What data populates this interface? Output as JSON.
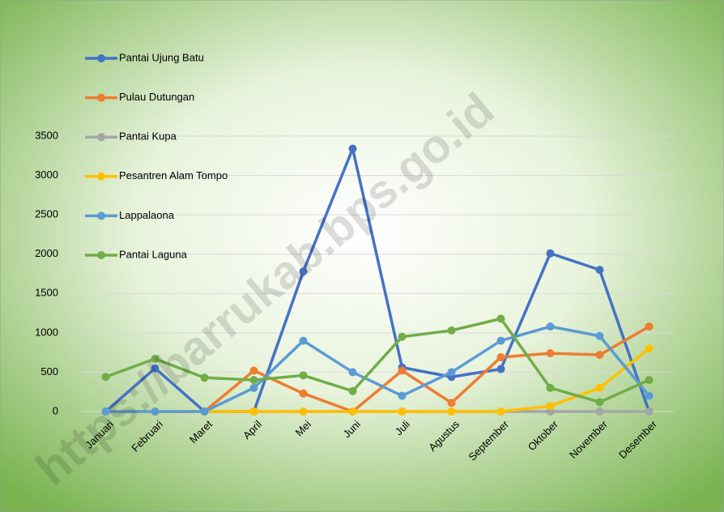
{
  "chart_data": {
    "type": "line",
    "categories": [
      "Januari",
      "Februari",
      "Maret",
      "April",
      "Mei",
      "Juni",
      "Juli",
      "Agustus",
      "September",
      "Oktober",
      "November",
      "Desember"
    ],
    "series": [
      {
        "name": "Pantai Ujung Batu",
        "color": "#4472c4",
        "values": [
          0,
          550,
          0,
          0,
          1780,
          3340,
          560,
          440,
          540,
          2010,
          1800,
          0
        ]
      },
      {
        "name": "Pulau Dutungan",
        "color": "#ed7d31",
        "values": [
          0,
          0,
          0,
          520,
          230,
          0,
          520,
          110,
          690,
          740,
          720,
          1080
        ]
      },
      {
        "name": "Pantai Kupa",
        "color": "#a5a5a5",
        "values": [
          0,
          0,
          0,
          0,
          0,
          0,
          0,
          0,
          0,
          0,
          0,
          0
        ]
      },
      {
        "name": "Pesantren Alam Tompo",
        "color": "#ffc000",
        "values": [
          0,
          0,
          0,
          0,
          0,
          0,
          0,
          0,
          0,
          70,
          300,
          800
        ]
      },
      {
        "name": "Lappalaona",
        "color": "#5b9bd5",
        "values": [
          0,
          0,
          0,
          300,
          900,
          500,
          200,
          500,
          900,
          1080,
          960,
          200
        ]
      },
      {
        "name": "Pantai Laguna",
        "color": "#70ad47",
        "values": [
          440,
          670,
          430,
          400,
          460,
          260,
          950,
          1030,
          1180,
          300,
          120,
          400
        ]
      }
    ],
    "ylim": [
      0,
      3500
    ],
    "yticks": [
      0,
      500,
      1000,
      1500,
      2000,
      2500,
      3000,
      3500
    ],
    "grid": true,
    "legend": "top-left",
    "watermark": "https://barrukab.bps.go.id"
  }
}
